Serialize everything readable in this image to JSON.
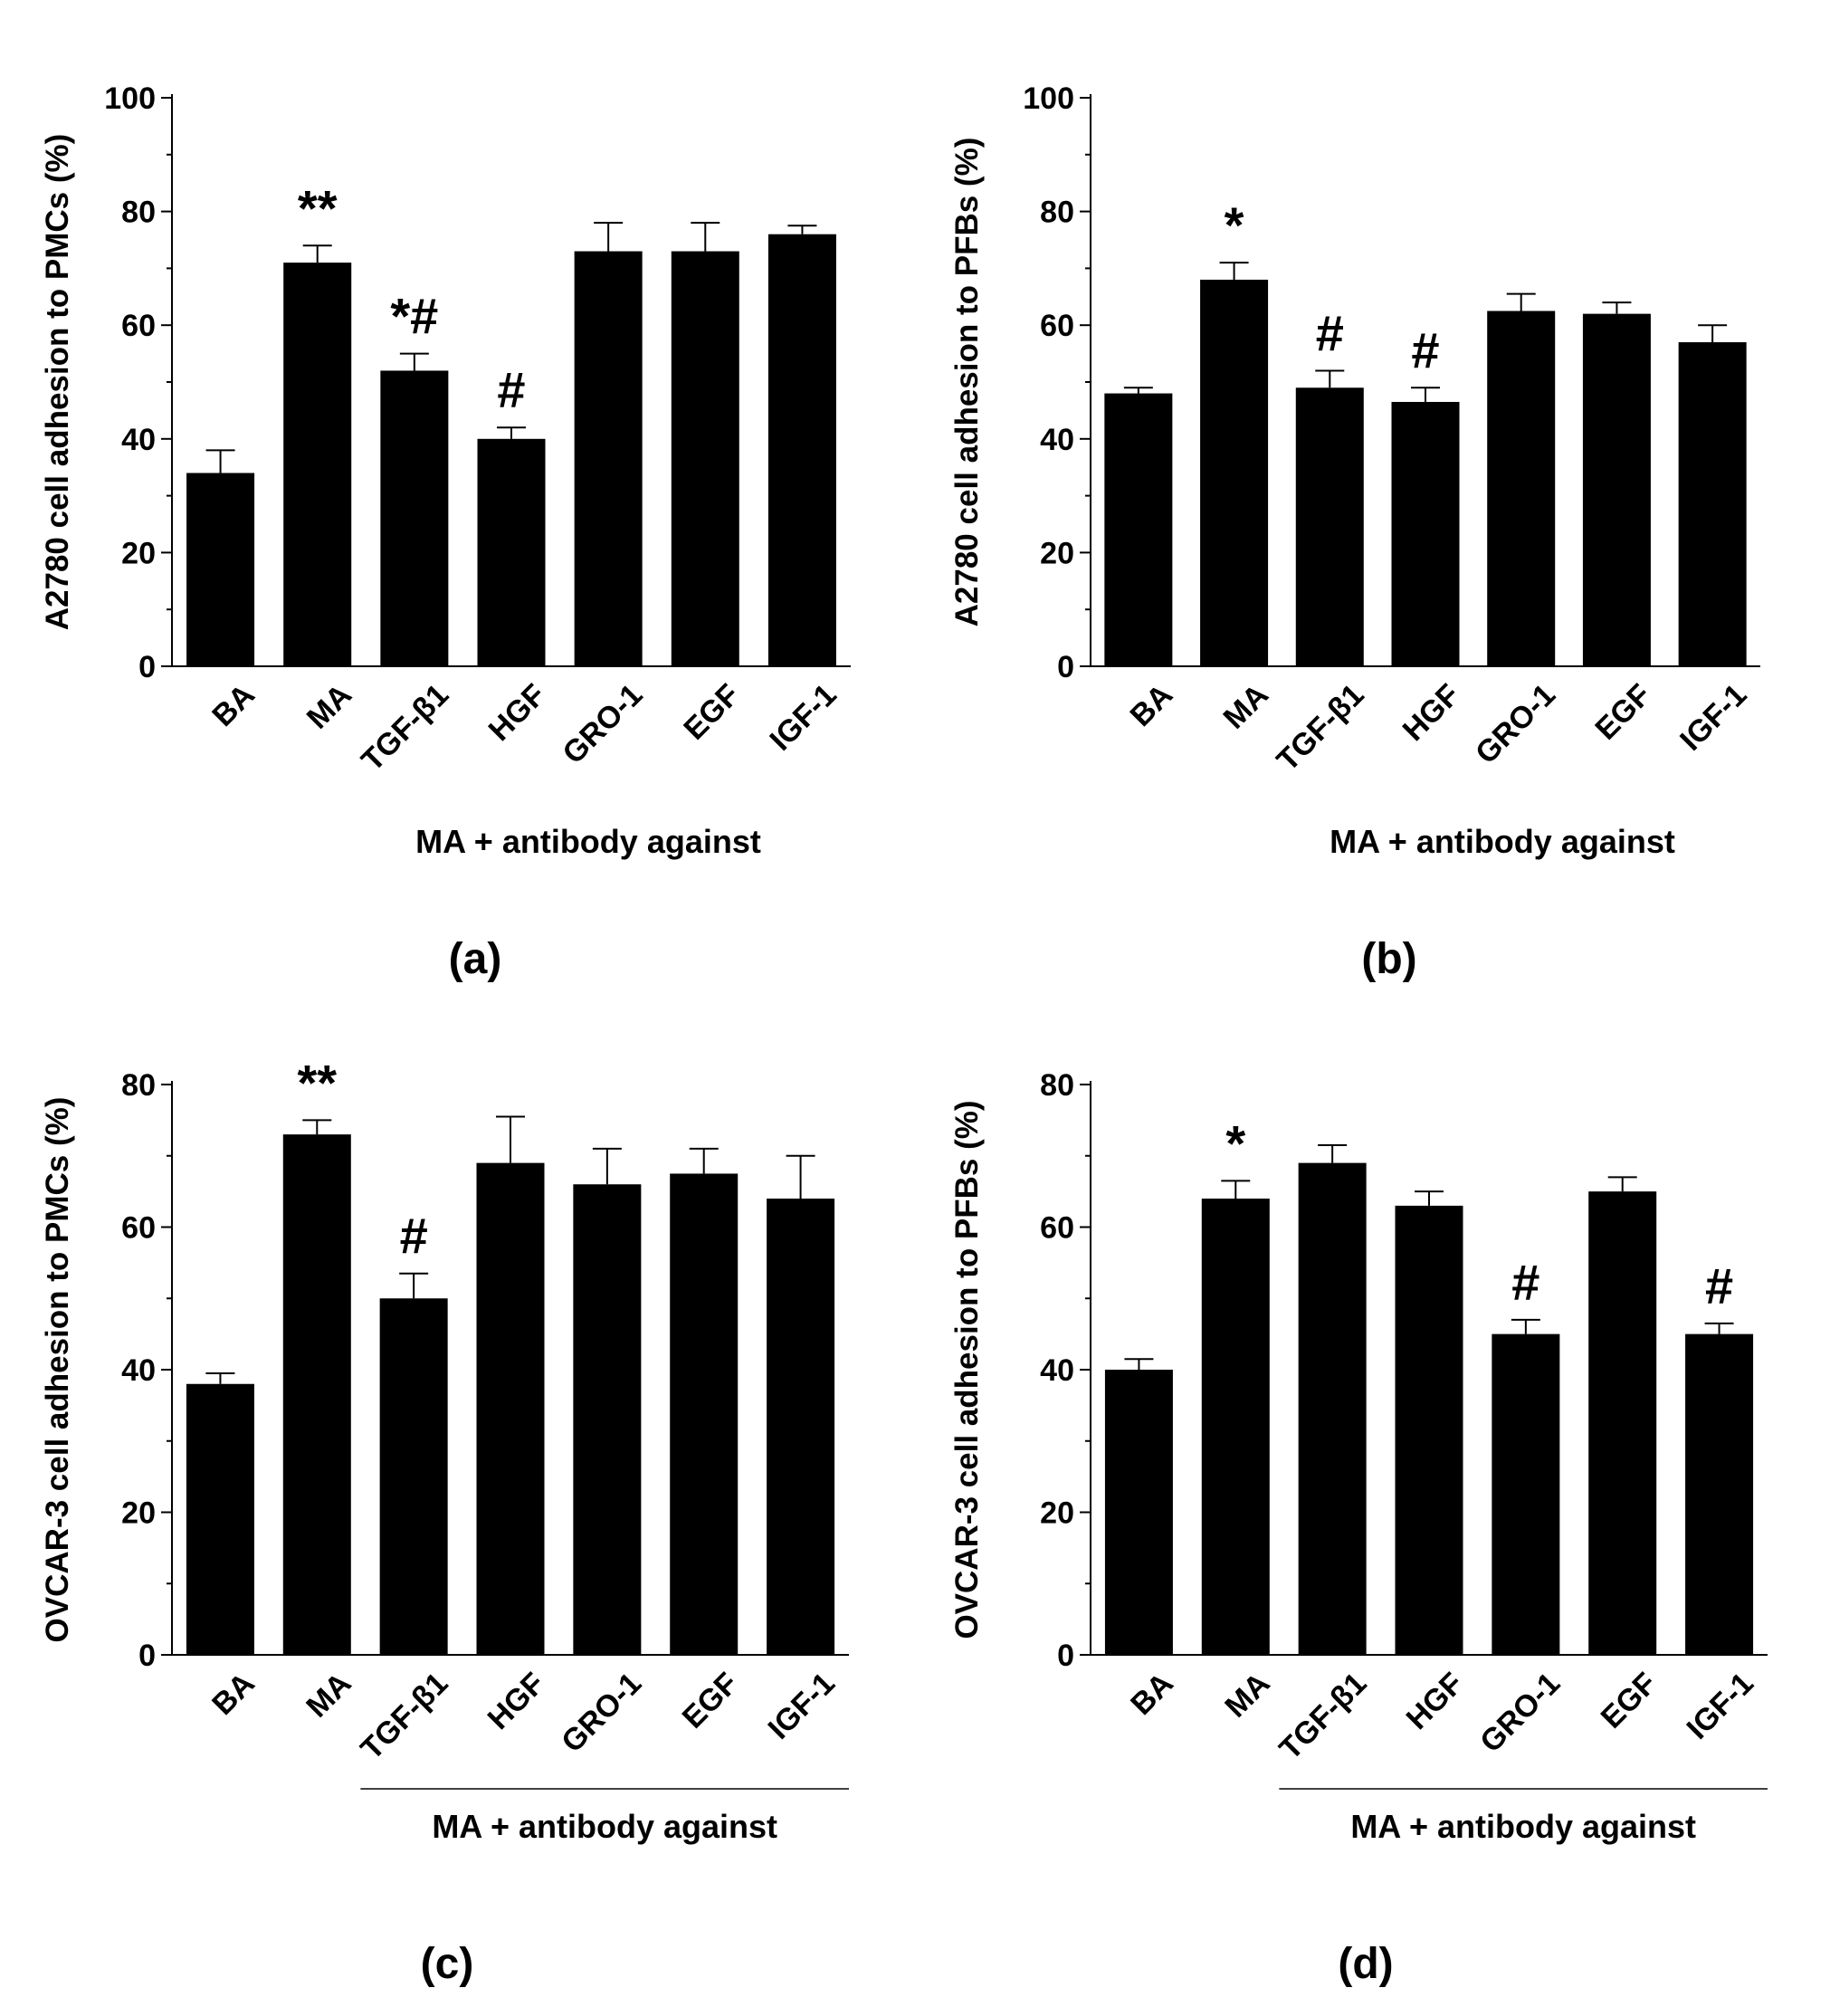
{
  "chart_data": [
    {
      "panel": "(a)",
      "type": "bar",
      "categories": [
        "BA",
        "MA",
        "TGF-β1",
        "HGF",
        "GRO-1",
        "EGF",
        "IGF-1"
      ],
      "values": [
        34,
        71,
        52,
        40,
        73,
        73,
        76
      ],
      "errors": [
        4,
        3,
        3,
        2,
        5,
        5,
        1.5
      ],
      "annotations": [
        "",
        "**",
        "*#",
        "#",
        "",
        "",
        ""
      ],
      "ylabel": "A2780 cell adhesion to PMCs (%)",
      "xlabel": "MA + antibody against",
      "ylim": [
        0,
        100
      ],
      "yticks": [
        0,
        20,
        40,
        60,
        80,
        100
      ],
      "group_line": false
    },
    {
      "panel": "(b)",
      "type": "bar",
      "categories": [
        "BA",
        "MA",
        "TGF-β1",
        "HGF",
        "GRO-1",
        "EGF",
        "IGF-1"
      ],
      "values": [
        48,
        68,
        49,
        46.5,
        62.5,
        62,
        57
      ],
      "errors": [
        1,
        3,
        3,
        2.5,
        3,
        2,
        3
      ],
      "annotations": [
        "",
        "*",
        "#",
        "#",
        "",
        "",
        ""
      ],
      "ylabel": "A2780 cell adhesion to PFBs (%)",
      "xlabel": "MA + antibody against",
      "ylim": [
        0,
        100
      ],
      "yticks": [
        0,
        20,
        40,
        60,
        80,
        100
      ],
      "group_line": false
    },
    {
      "panel": "(c)",
      "type": "bar",
      "categories": [
        "BA",
        "MA",
        "TGF-β1",
        "HGF",
        "GRO-1",
        "EGF",
        "IGF-1"
      ],
      "values": [
        38,
        73,
        50,
        69,
        66,
        67.5,
        64
      ],
      "errors": [
        1.5,
        2,
        3.5,
        6.5,
        5,
        3.5,
        6
      ],
      "annotations": [
        "",
        "**",
        "#",
        "",
        "",
        "",
        ""
      ],
      "ylabel": "OVCAR-3 cell adhesion to PMCs (%)",
      "xlabel": "MA + antibody against",
      "ylim": [
        0,
        80
      ],
      "yticks": [
        0,
        20,
        40,
        60,
        80
      ],
      "group_line": true
    },
    {
      "panel": "(d)",
      "type": "bar",
      "categories": [
        "BA",
        "MA",
        "TGF-β1",
        "HGF",
        "GRO-1",
        "EGF",
        "IGF-1"
      ],
      "values": [
        40,
        64,
        69,
        63,
        45,
        65,
        45
      ],
      "errors": [
        1.5,
        2.5,
        2.5,
        2,
        2,
        2,
        1.5
      ],
      "annotations": [
        "",
        "*",
        "",
        "",
        "#",
        "",
        "#"
      ],
      "ylabel": "OVCAR-3 cell adhesion to PFBs (%)",
      "xlabel": "MA + antibody against",
      "ylim": [
        0,
        80
      ],
      "yticks": [
        0,
        20,
        40,
        60,
        80
      ],
      "group_line": true
    }
  ]
}
